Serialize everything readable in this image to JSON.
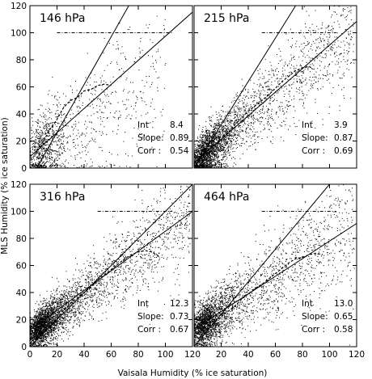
{
  "figure": {
    "xlabel": "Vaisala Humidity (% ice saturation)",
    "ylabel": "MLS Humidity (% ice saturation)"
  },
  "chart_data": [
    {
      "type": "scatter",
      "title": "146 hPa",
      "xlim": [
        0,
        120
      ],
      "ylim": [
        0,
        120
      ],
      "xticks": [
        0,
        20,
        40,
        60,
        80,
        100,
        120
      ],
      "yticks": [
        0,
        20,
        40,
        60,
        80,
        100,
        120
      ],
      "tick_labels_x": [
        "",
        "",
        "",
        "",
        "",
        "",
        ""
      ],
      "tick_labels_y": [
        "0",
        "20",
        "40",
        "60",
        "80",
        "100",
        "120"
      ],
      "stats": [
        {
          "label": "Int",
          "value": "8.4"
        },
        {
          "label": "Slope:",
          "value": "0.89"
        },
        {
          "label": "Corr :",
          "value": "0.54"
        }
      ],
      "one_to_one_line": [
        [
          5,
          0
        ],
        [
          73,
          120
        ]
      ],
      "fit_line": [
        [
          0,
          8.4
        ],
        [
          120,
          115.2
        ]
      ],
      "saturation_line_y": 100,
      "saturation_line_x_range": [
        20,
        105
      ],
      "binned_mean": [
        [
          5,
          13
        ],
        [
          10,
          20
        ],
        [
          15,
          29
        ],
        [
          20,
          36
        ],
        [
          25,
          45
        ],
        [
          30,
          50
        ],
        [
          35,
          52
        ],
        [
          40,
          57
        ],
        [
          45,
          58
        ],
        [
          50,
          61
        ],
        [
          55,
          62
        ],
        [
          60,
          61
        ]
      ],
      "scatter": {
        "n": 1200,
        "x_mode": 6,
        "slope": 0.6,
        "intercept": 8,
        "spread": 26,
        "x_max": 100
      }
    },
    {
      "type": "scatter",
      "title": "215 hPa",
      "xlim": [
        0,
        120
      ],
      "ylim": [
        0,
        120
      ],
      "xticks": [
        0,
        20,
        40,
        60,
        80,
        100,
        120
      ],
      "yticks": [
        0,
        20,
        40,
        60,
        80,
        100,
        120
      ],
      "tick_labels_x": [
        "",
        "",
        "",
        "",
        "",
        "",
        ""
      ],
      "tick_labels_y": [
        "",
        "",
        "",
        "",
        "",
        "",
        ""
      ],
      "stats": [
        {
          "label": "Int",
          "value": "3.9"
        },
        {
          "label": "Slope:",
          "value": "0.87"
        },
        {
          "label": "Corr :",
          "value": "0.69"
        }
      ],
      "one_to_one_line": [
        [
          0,
          0
        ],
        [
          75,
          120
        ]
      ],
      "fit_line": [
        [
          0,
          3.9
        ],
        [
          120,
          108.3
        ]
      ],
      "saturation_line_y": 100,
      "saturation_line_x_range": [
        50,
        105
      ],
      "binned_mean": [
        [
          5,
          5
        ],
        [
          10,
          10
        ],
        [
          15,
          16
        ],
        [
          20,
          21
        ],
        [
          25,
          26
        ],
        [
          30,
          32
        ],
        [
          35,
          37
        ],
        [
          40,
          42
        ],
        [
          45,
          46
        ],
        [
          50,
          50
        ],
        [
          55,
          54
        ],
        [
          60,
          59
        ],
        [
          65,
          64
        ],
        [
          70,
          68
        ],
        [
          75,
          72
        ],
        [
          80,
          74
        ],
        [
          85,
          75
        ],
        [
          88,
          73
        ]
      ],
      "scatter": {
        "n": 3200,
        "x_mode": 6,
        "slope": 0.85,
        "intercept": 4,
        "spread": 16,
        "x_max": 118
      }
    },
    {
      "type": "scatter",
      "title": "316 hPa",
      "xlim": [
        0,
        120
      ],
      "ylim": [
        0,
        120
      ],
      "xticks": [
        0,
        20,
        40,
        60,
        80,
        100,
        120
      ],
      "yticks": [
        0,
        20,
        40,
        60,
        80,
        100,
        120
      ],
      "tick_labels_x": [
        "0",
        "20",
        "40",
        "60",
        "80",
        "100",
        "120"
      ],
      "tick_labels_y": [
        "0",
        "20",
        "40",
        "60",
        "80",
        "100",
        "120"
      ],
      "stats": [
        {
          "label": "Int",
          "value": "12.3"
        },
        {
          "label": "Slope:",
          "value": "0.73"
        },
        {
          "label": "Corr :",
          "value": "0.67"
        }
      ],
      "one_to_one_line": [
        [
          0,
          0
        ],
        [
          120,
          120
        ]
      ],
      "fit_line": [
        [
          0,
          12.3
        ],
        [
          120,
          99.9
        ]
      ],
      "saturation_line_y": 100,
      "saturation_line_x_range": [
        50,
        105
      ],
      "binned_mean": [
        [
          5,
          6
        ],
        [
          10,
          11
        ],
        [
          15,
          16
        ],
        [
          20,
          21
        ],
        [
          25,
          27
        ],
        [
          30,
          32
        ],
        [
          35,
          36
        ],
        [
          40,
          40
        ],
        [
          45,
          44
        ],
        [
          50,
          49
        ],
        [
          55,
          53
        ],
        [
          60,
          57
        ],
        [
          65,
          61
        ],
        [
          70,
          65
        ],
        [
          75,
          68
        ],
        [
          80,
          70
        ],
        [
          85,
          71
        ],
        [
          90,
          70
        ],
        [
          95,
          67
        ]
      ],
      "scatter": {
        "n": 3600,
        "x_mode": 6,
        "slope": 0.75,
        "intercept": 9,
        "spread": 14,
        "x_max": 118
      }
    },
    {
      "type": "scatter",
      "title": "464 hPa",
      "xlim": [
        0,
        120
      ],
      "ylim": [
        0,
        120
      ],
      "xticks": [
        0,
        20,
        40,
        60,
        80,
        100,
        120
      ],
      "yticks": [
        0,
        20,
        40,
        60,
        80,
        100,
        120
      ],
      "tick_labels_x": [
        "",
        "20",
        "40",
        "60",
        "80",
        "100",
        "120"
      ],
      "tick_labels_y": [
        "",
        "",
        "",
        "",
        "",
        "",
        ""
      ],
      "stats": [
        {
          "label": "Int",
          "value": "13.0"
        },
        {
          "label": "Slope:",
          "value": "0.65"
        },
        {
          "label": "Corr :",
          "value": "0.58"
        }
      ],
      "one_to_one_line": [
        [
          0,
          0
        ],
        [
          100,
          120
        ]
      ],
      "fit_line": [
        [
          0,
          13.0
        ],
        [
          120,
          91.0
        ]
      ],
      "saturation_line_y": 100,
      "saturation_line_x_range": [
        50,
        105
      ],
      "binned_mean": [
        [
          5,
          8
        ],
        [
          10,
          14
        ],
        [
          15,
          18
        ],
        [
          20,
          22
        ],
        [
          25,
          26
        ],
        [
          30,
          30
        ],
        [
          35,
          35
        ],
        [
          40,
          39
        ],
        [
          45,
          43
        ],
        [
          50,
          46
        ],
        [
          55,
          50
        ],
        [
          60,
          54
        ],
        [
          65,
          58
        ],
        [
          70,
          62
        ],
        [
          75,
          65
        ],
        [
          80,
          66
        ],
        [
          85,
          68
        ],
        [
          90,
          69
        ],
        [
          95,
          68
        ]
      ],
      "scatter": {
        "n": 3000,
        "x_mode": 6,
        "slope": 0.68,
        "intercept": 12,
        "spread": 17,
        "x_max": 118
      }
    }
  ]
}
